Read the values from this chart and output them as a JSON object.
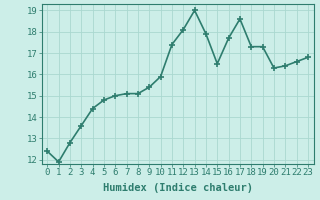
{
  "x": [
    0,
    1,
    2,
    3,
    4,
    5,
    6,
    7,
    8,
    9,
    10,
    11,
    12,
    13,
    14,
    15,
    16,
    17,
    18,
    19,
    20,
    21,
    22,
    23
  ],
  "y": [
    12.4,
    11.9,
    12.8,
    13.6,
    14.4,
    14.8,
    15.0,
    15.1,
    15.1,
    15.4,
    15.9,
    17.4,
    18.1,
    19.0,
    17.9,
    16.5,
    17.7,
    18.6,
    17.3,
    17.3,
    16.3,
    16.4,
    16.6,
    16.8
  ],
  "xlabel": "Humidex (Indice chaleur)",
  "ylim": [
    11.8,
    19.3
  ],
  "yticks": [
    12,
    13,
    14,
    15,
    16,
    17,
    18,
    19
  ],
  "xticks": [
    0,
    1,
    2,
    3,
    4,
    5,
    6,
    7,
    8,
    9,
    10,
    11,
    12,
    13,
    14,
    15,
    16,
    17,
    18,
    19,
    20,
    21,
    22,
    23
  ],
  "line_color": "#2e7d6e",
  "marker": "+",
  "marker_size": 4.0,
  "bg_color": "#cceee8",
  "grid_color": "#aad8d0",
  "xlabel_fontsize": 7.5,
  "tick_fontsize": 6.5,
  "linewidth": 1.2
}
